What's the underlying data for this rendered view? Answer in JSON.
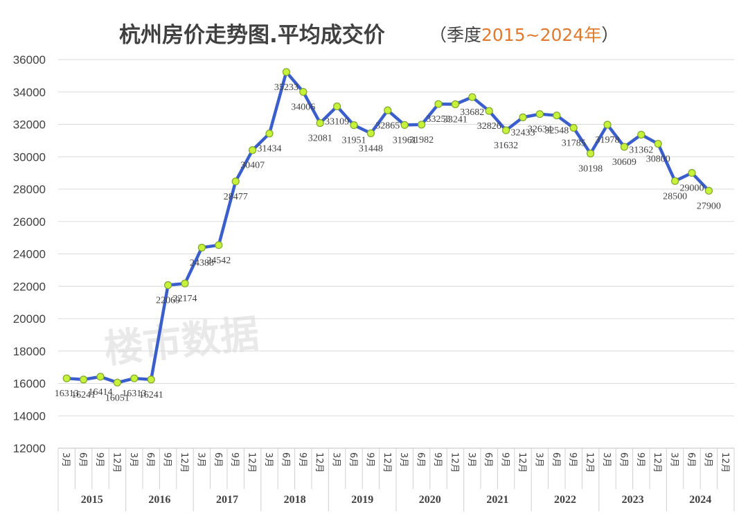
{
  "chart_data": {
    "type": "line",
    "title": "杭州房价走势图.平均成交价",
    "subtitle_prefix": "（季度",
    "subtitle_accent": "2015~2024年",
    "subtitle_suffix": "）",
    "watermark": "楼市数据",
    "ylim": [
      12000,
      36000
    ],
    "yticks": [
      12000,
      14000,
      16000,
      18000,
      20000,
      22000,
      24000,
      26000,
      28000,
      30000,
      32000,
      34000,
      36000
    ],
    "grid": true,
    "years": [
      "2015",
      "2016",
      "2017",
      "2018",
      "2019",
      "2020",
      "2021",
      "2022",
      "2023",
      "2024"
    ],
    "months": [
      "3月",
      "6月",
      "9月",
      "12月"
    ],
    "series": [
      {
        "values": [
          16313,
          16241,
          16414,
          16051,
          16313,
          16241,
          22069,
          22174,
          24388,
          24542,
          28477,
          30407,
          31434,
          35233,
          34006,
          32081,
          33109,
          31951,
          31448,
          32865,
          31961,
          31982,
          33253,
          33241,
          33682,
          32826,
          31632,
          32433,
          32634,
          32548,
          31785,
          30198,
          31978,
          30609,
          31362,
          30800,
          28500,
          29000,
          27900,
          null
        ]
      }
    ],
    "line_color": "#3a5fcd",
    "marker_fill": "#c6f23b",
    "marker_stroke": "#7fa52a"
  }
}
